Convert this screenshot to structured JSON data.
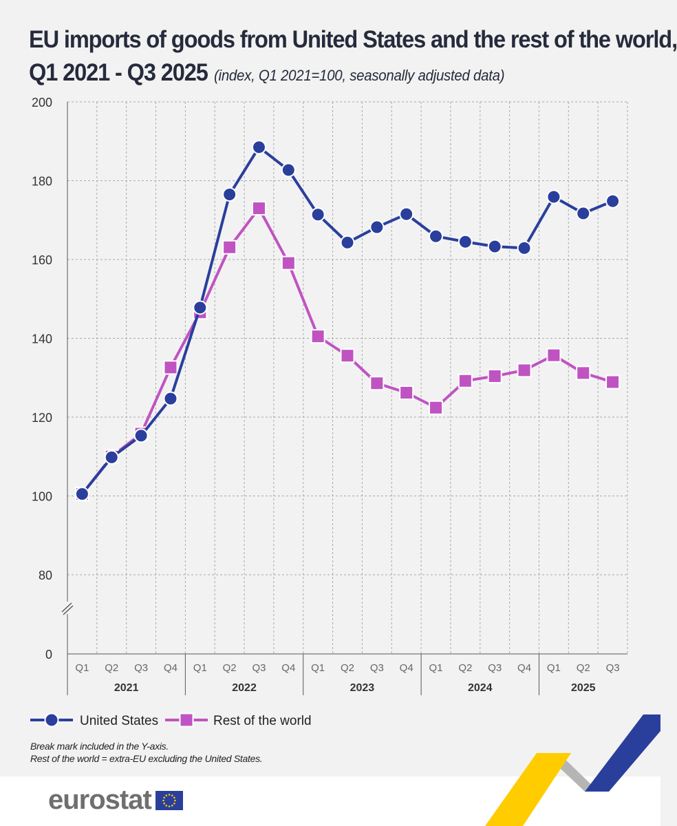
{
  "header": {
    "title_line1": "EU imports of goods from United States and the rest of the world,",
    "title_line2": "Q1 2021 - Q3 2025",
    "subtitle": "(index, Q1 2021=100, seasonally adjusted data)"
  },
  "chart_data": {
    "type": "line",
    "title": "EU imports of goods from United States and the rest of the world, Q1 2021 - Q3 2025",
    "subtitle": "(index, Q1 2021=100, seasonally adjusted data)",
    "categories": [
      "Q1",
      "Q2",
      "Q3",
      "Q4",
      "Q1",
      "Q2",
      "Q3",
      "Q4",
      "Q1",
      "Q2",
      "Q3",
      "Q4",
      "Q1",
      "Q2",
      "Q3",
      "Q4",
      "Q1",
      "Q2",
      "Q3"
    ],
    "years": [
      {
        "label": "2021",
        "from": 0,
        "to": 3
      },
      {
        "label": "2022",
        "from": 4,
        "to": 7
      },
      {
        "label": "2023",
        "from": 8,
        "to": 11
      },
      {
        "label": "2024",
        "from": 12,
        "to": 15
      },
      {
        "label": "2025",
        "from": 16,
        "to": 18
      }
    ],
    "y_ticks": [
      0,
      80,
      100,
      120,
      140,
      160,
      180,
      200
    ],
    "ylim": [
      70,
      200
    ],
    "y_axis_break": true,
    "grid": true,
    "series": [
      {
        "name": "United States",
        "color": "#2a3f9c",
        "marker": "circle",
        "values": [
          100.5,
          109.8,
          115.3,
          124.7,
          147.8,
          176.5,
          188.5,
          182.7,
          171.4,
          164.3,
          168.2,
          171.5,
          165.9,
          164.5,
          163.3,
          162.9,
          175.9,
          171.7,
          174.8
        ]
      },
      {
        "name": "Rest of the world",
        "color": "#c053c2",
        "marker": "square",
        "values": [
          100.5,
          110.0,
          115.8,
          132.6,
          146.6,
          163.1,
          173.0,
          159.1,
          140.5,
          135.6,
          128.6,
          126.2,
          122.4,
          129.2,
          130.4,
          131.9,
          135.7,
          131.2,
          128.9
        ]
      }
    ],
    "legend_position": "bottom-left"
  },
  "legend": {
    "items": [
      {
        "label": "United States"
      },
      {
        "label": "Rest of the world"
      }
    ]
  },
  "notes": {
    "line1": "Break mark included in the Y-axis.",
    "line2": "Rest of the world = extra-EU excluding the United States."
  },
  "brand": {
    "name": "eurostat",
    "ribbon_colors": [
      "#ffcc00",
      "#2a3f9c",
      "#b5b5b5"
    ]
  }
}
